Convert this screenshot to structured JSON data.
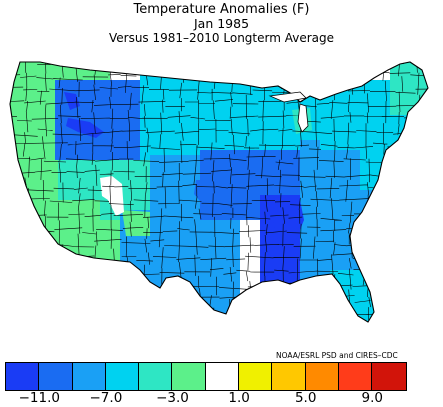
{
  "title": {
    "line1": "Temperature Anomalies (F)",
    "line2": "Jan 1985",
    "line3": "Versus 1981–2010 Longterm Average"
  },
  "credit": "NOAA/ESRL PSD and CIRES–CDC",
  "legend": {
    "colors": [
      "#1a3cf5",
      "#1a6cf2",
      "#1aa0f5",
      "#00d2f0",
      "#2ee6c4",
      "#5cf08a",
      "#ffffff",
      "#f0f000",
      "#ffc800",
      "#ff8a00",
      "#ff3c1a",
      "#d2140a"
    ],
    "tick_labels": [
      "−11.0",
      "−7.0",
      "−3.0",
      "1.0",
      "5.0",
      "9.0"
    ]
  },
  "map": {
    "region": "Contiguous United States (climate divisions)",
    "regional_anomaly_colors": {
      "northwest": "#5cf08a",
      "california_coast": "#5cf08a",
      "idaho_montana": "#1a6cf2",
      "great_basin": "#2ee6c4",
      "southwest": "#5cf08a",
      "four_corners": "#2ee6c4",
      "northern_plains": "#00d2f0",
      "central_plains": "#1aa0f5",
      "southern_plains": "#1aa0f5",
      "upper_midwest": "#00d2f0",
      "mid_mississippi": "#1a6cf2",
      "lower_mississippi": "#1a3cf5",
      "southeast": "#1aa0f5",
      "florida": "#00d2f0",
      "ohio_valley": "#1aa0f5",
      "great_lakes": "#00d2f0",
      "northeast": "#00d2f0",
      "new_england": "#2ee6c4"
    }
  }
}
